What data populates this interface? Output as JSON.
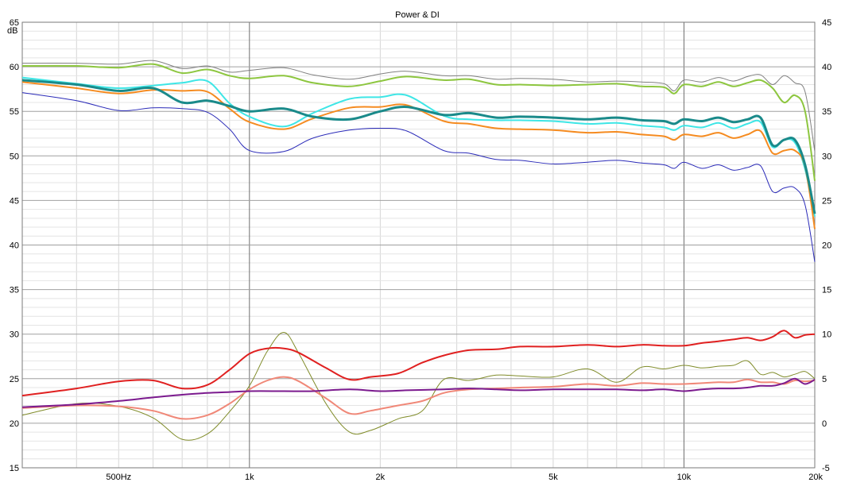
{
  "chart_data": {
    "type": "line",
    "title": "Power & DI",
    "xscale": "log",
    "xlim": [
      300,
      20000
    ],
    "xticks": [
      {
        "value": 500,
        "label": "500Hz"
      },
      {
        "value": 1000,
        "label": "1k"
      },
      {
        "value": 2000,
        "label": "2k"
      },
      {
        "value": 5000,
        "label": "5k"
      },
      {
        "value": 10000,
        "label": "10k"
      },
      {
        "value": 20000,
        "label": "20k"
      }
    ],
    "ylim": [
      15,
      65
    ],
    "ylabel": "dB",
    "yticks": [
      15,
      20,
      25,
      30,
      35,
      40,
      45,
      50,
      55,
      60,
      65
    ],
    "y2lim": [
      -5,
      45
    ],
    "y2ticks": [
      -5,
      0,
      5,
      10,
      15,
      20,
      25,
      30,
      35,
      40,
      45
    ],
    "grid": true,
    "series": [
      {
        "color": "#808080",
        "width": 1,
        "axis": "left",
        "x": [
          300,
          400,
          500,
          600,
          700,
          800,
          900,
          1000,
          1200,
          1400,
          1700,
          2000,
          2300,
          2800,
          3200,
          3700,
          4200,
          5000,
          6000,
          7000,
          8000,
          9000,
          9500,
          10000,
          11000,
          12000,
          13000,
          14000,
          15000,
          16000,
          17000,
          18000,
          19000,
          20000
        ],
        "y": [
          60.4,
          60.4,
          60.3,
          60.7,
          59.8,
          60.1,
          59.4,
          59.6,
          59.9,
          59.1,
          58.6,
          59.2,
          59.5,
          59.0,
          59.0,
          58.6,
          58.7,
          58.6,
          58.3,
          58.4,
          58.3,
          58.1,
          57.3,
          58.5,
          58.3,
          58.8,
          58.4,
          58.9,
          59.1,
          58.0,
          59.0,
          58.2,
          57.2,
          50.5
        ]
      },
      {
        "color": "#8dc63f",
        "width": 2,
        "axis": "left",
        "x": [
          300,
          400,
          500,
          600,
          700,
          800,
          900,
          1000,
          1200,
          1400,
          1700,
          2000,
          2300,
          2800,
          3200,
          3700,
          4200,
          5000,
          6000,
          7000,
          8000,
          9000,
          9500,
          10000,
          11000,
          12000,
          13000,
          14000,
          15000,
          16000,
          17000,
          18000,
          19000,
          20000
        ],
        "y": [
          60.1,
          60.1,
          59.9,
          60.3,
          59.3,
          59.7,
          59.0,
          58.7,
          59.0,
          58.2,
          57.8,
          58.4,
          58.9,
          58.5,
          58.6,
          58.0,
          58.0,
          57.9,
          58.0,
          58.1,
          57.8,
          57.7,
          57.0,
          58.0,
          57.8,
          58.3,
          57.8,
          58.2,
          58.5,
          57.6,
          56.0,
          56.8,
          55.0,
          47.2
        ]
      },
      {
        "color": "#3ee6e6",
        "width": 2,
        "axis": "left",
        "x": [
          300,
          400,
          500,
          600,
          700,
          800,
          900,
          1000,
          1200,
          1400,
          1700,
          2000,
          2300,
          2800,
          3200,
          3700,
          4200,
          5000,
          6000,
          7000,
          8000,
          9000,
          9500,
          10000,
          11000,
          12000,
          13000,
          14000,
          15000,
          16000,
          17000,
          18000,
          19000,
          20000
        ],
        "y": [
          58.8,
          58.1,
          57.6,
          57.9,
          58.2,
          58.4,
          55.9,
          54.4,
          53.3,
          54.8,
          56.4,
          56.6,
          56.8,
          54.5,
          54.1,
          54.0,
          54.0,
          53.9,
          53.6,
          53.7,
          53.4,
          53.2,
          52.9,
          53.4,
          53.2,
          53.7,
          53.1,
          53.6,
          53.8,
          51.0,
          51.8,
          51.5,
          48.5,
          43.2
        ]
      },
      {
        "color": "#f58b20",
        "width": 2,
        "axis": "left",
        "x": [
          300,
          400,
          500,
          600,
          700,
          800,
          900,
          1000,
          1200,
          1400,
          1700,
          2000,
          2300,
          2800,
          3200,
          3700,
          4200,
          5000,
          6000,
          7000,
          8000,
          9000,
          9500,
          10000,
          11000,
          12000,
          13000,
          14000,
          15000,
          16000,
          17000,
          18000,
          19000,
          20000
        ],
        "y": [
          58.3,
          57.6,
          57.0,
          57.4,
          57.3,
          57.2,
          55.3,
          53.8,
          53.0,
          54.2,
          55.4,
          55.5,
          55.7,
          53.9,
          53.6,
          53.1,
          53.0,
          52.9,
          52.6,
          52.7,
          52.4,
          52.2,
          51.8,
          52.4,
          52.2,
          52.6,
          52.0,
          52.4,
          52.8,
          50.3,
          50.6,
          50.6,
          48.8,
          41.8
        ]
      },
      {
        "color": "#1a8a8a",
        "width": 3,
        "axis": "left",
        "x": [
          300,
          400,
          500,
          600,
          700,
          800,
          900,
          1000,
          1200,
          1400,
          1700,
          2000,
          2300,
          2800,
          3200,
          3700,
          4200,
          5000,
          6000,
          7000,
          8000,
          9000,
          9500,
          10000,
          11000,
          12000,
          13000,
          14000,
          15000,
          16000,
          17000,
          18000,
          19000,
          20000
        ],
        "y": [
          58.5,
          58.0,
          57.3,
          57.6,
          56.0,
          56.2,
          55.6,
          55.0,
          55.3,
          54.4,
          54.1,
          55.0,
          55.5,
          54.6,
          54.8,
          54.3,
          54.4,
          54.3,
          54.1,
          54.3,
          54.0,
          53.9,
          53.6,
          54.1,
          53.9,
          54.3,
          53.8,
          54.1,
          54.3,
          51.2,
          51.8,
          51.8,
          49.0,
          43.5
        ]
      },
      {
        "color": "#2a2ab8",
        "width": 1,
        "axis": "left",
        "x": [
          300,
          400,
          500,
          600,
          700,
          800,
          900,
          1000,
          1200,
          1400,
          1700,
          2000,
          2300,
          2800,
          3200,
          3700,
          4200,
          5000,
          6000,
          7000,
          8000,
          9000,
          9500,
          10000,
          11000,
          12000,
          13000,
          14000,
          15000,
          16000,
          17000,
          18000,
          19000,
          20000
        ],
        "y": [
          57.1,
          56.2,
          55.1,
          55.4,
          55.3,
          54.9,
          53.0,
          50.6,
          50.5,
          52.0,
          52.9,
          53.1,
          52.8,
          50.6,
          50.3,
          49.6,
          49.5,
          49.1,
          49.3,
          49.5,
          49.2,
          49.0,
          48.6,
          49.3,
          48.6,
          49.0,
          48.4,
          48.7,
          48.9,
          46.0,
          46.4,
          46.4,
          44.5,
          38.1
        ]
      },
      {
        "color": "#808c2a",
        "width": 1,
        "axis": "right",
        "x": [
          300,
          400,
          500,
          600,
          700,
          800,
          900,
          1000,
          1100,
          1200,
          1300,
          1500,
          1700,
          1900,
          2200,
          2500,
          2800,
          3200,
          3700,
          4200,
          5000,
          6000,
          7000,
          8000,
          9000,
          10000,
          11000,
          12000,
          13000,
          14000,
          15000,
          16000,
          17000,
          18000,
          19000,
          20000
        ],
        "y": [
          0.9,
          2.2,
          1.9,
          0.6,
          -1.8,
          -1.2,
          1.3,
          4.2,
          8.1,
          10.2,
          7.8,
          2.2,
          -1.0,
          -0.8,
          0.5,
          1.4,
          4.9,
          4.8,
          5.4,
          5.3,
          5.2,
          6.1,
          4.6,
          6.3,
          6.1,
          6.5,
          6.2,
          6.4,
          6.5,
          7.0,
          5.5,
          5.7,
          5.2,
          5.5,
          5.8,
          5.0
        ]
      },
      {
        "color": "#f08878",
        "width": 2,
        "axis": "right",
        "x": [
          300,
          400,
          500,
          600,
          700,
          800,
          900,
          1000,
          1100,
          1200,
          1300,
          1500,
          1700,
          1900,
          2200,
          2500,
          2800,
          3200,
          3700,
          4200,
          5000,
          6000,
          7000,
          8000,
          9000,
          10000,
          11000,
          12000,
          13000,
          14000,
          15000,
          16000,
          17000,
          18000,
          19000,
          20000
        ],
        "y": [
          1.7,
          2.0,
          1.9,
          1.4,
          0.5,
          0.9,
          2.2,
          3.8,
          4.8,
          5.2,
          4.7,
          2.8,
          1.1,
          1.4,
          2.0,
          2.5,
          3.4,
          3.8,
          3.9,
          4.0,
          4.1,
          4.4,
          4.2,
          4.5,
          4.4,
          4.4,
          4.5,
          4.6,
          4.6,
          4.9,
          4.6,
          4.6,
          4.4,
          4.8,
          4.7,
          4.8
        ]
      },
      {
        "color": "#e02020",
        "width": 2,
        "axis": "right",
        "x": [
          300,
          400,
          500,
          600,
          700,
          800,
          900,
          1000,
          1100,
          1200,
          1300,
          1500,
          1700,
          1900,
          2200,
          2500,
          2800,
          3200,
          3700,
          4200,
          5000,
          6000,
          7000,
          8000,
          9000,
          10000,
          11000,
          12000,
          13000,
          14000,
          15000,
          16000,
          17000,
          18000,
          19000,
          20000
        ],
        "y": [
          3.1,
          3.9,
          4.7,
          4.8,
          3.9,
          4.3,
          6.0,
          7.8,
          8.4,
          8.4,
          7.9,
          6.2,
          4.9,
          5.2,
          5.6,
          6.8,
          7.6,
          8.2,
          8.3,
          8.6,
          8.6,
          8.8,
          8.6,
          8.8,
          8.7,
          8.7,
          9.0,
          9.2,
          9.4,
          9.6,
          9.3,
          9.7,
          10.4,
          9.6,
          9.9,
          10.0
        ]
      },
      {
        "color": "#7b1a8e",
        "width": 2,
        "axis": "right",
        "x": [
          300,
          400,
          500,
          600,
          700,
          800,
          900,
          1000,
          1200,
          1400,
          1700,
          2000,
          2300,
          2800,
          3200,
          3700,
          4200,
          5000,
          6000,
          7000,
          8000,
          9000,
          10000,
          11000,
          12000,
          13000,
          14000,
          15000,
          16000,
          17000,
          18000,
          19000,
          20000
        ],
        "y": [
          1.8,
          2.1,
          2.5,
          2.9,
          3.2,
          3.4,
          3.5,
          3.6,
          3.6,
          3.6,
          3.8,
          3.6,
          3.7,
          3.8,
          3.9,
          3.8,
          3.7,
          3.8,
          3.8,
          3.8,
          3.7,
          3.8,
          3.6,
          3.8,
          3.9,
          3.9,
          4.0,
          4.2,
          4.2,
          4.5,
          5.0,
          4.4,
          4.9
        ]
      }
    ]
  }
}
